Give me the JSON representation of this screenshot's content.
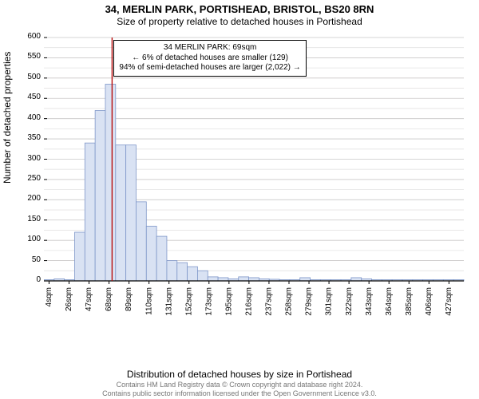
{
  "title": {
    "main": "34, MERLIN PARK, PORTISHEAD, BRISTOL, BS20 8RN",
    "sub": "Size of property relative to detached houses in Portishead"
  },
  "chart": {
    "type": "histogram",
    "ylabel": "Number of detached properties",
    "xlabel": "Distribution of detached houses by size in Portishead",
    "ylim": [
      0,
      600
    ],
    "ytick_step": 50,
    "x_ticks": [
      "4sqm",
      "26sqm",
      "47sqm",
      "68sqm",
      "89sqm",
      "110sqm",
      "131sqm",
      "152sqm",
      "173sqm",
      "195sqm",
      "216sqm",
      "237sqm",
      "258sqm",
      "279sqm",
      "301sqm",
      "322sqm",
      "343sqm",
      "364sqm",
      "385sqm",
      "406sqm",
      "427sqm"
    ],
    "values": [
      3,
      5,
      3,
      120,
      340,
      420,
      485,
      335,
      335,
      195,
      135,
      110,
      50,
      45,
      35,
      25,
      10,
      8,
      5,
      10,
      8,
      5,
      4,
      3,
      3,
      8,
      3,
      3,
      3,
      3,
      8,
      5,
      3,
      3,
      3,
      3,
      3,
      3,
      3,
      3,
      3
    ],
    "bar_fill": "#d9e2f3",
    "bar_stroke": "#7f97c9",
    "grid_major_color": "#c9c7c7",
    "grid_minor_color": "#e4e3e3",
    "axis_color": "#000000",
    "marker_line_color": "#b80e0e",
    "marker_x_index": 3,
    "tick_font_size": 10
  },
  "callout": {
    "line1": "34 MERLIN PARK: 69sqm",
    "line2": "← 6% of detached houses are smaller (129)",
    "line3": "94% of semi-detached houses are larger (2,022) →"
  },
  "attribution": {
    "line1": "Contains HM Land Registry data © Crown copyright and database right 2024.",
    "line2": "Contains public sector information licensed under the Open Government Licence v3.0."
  }
}
